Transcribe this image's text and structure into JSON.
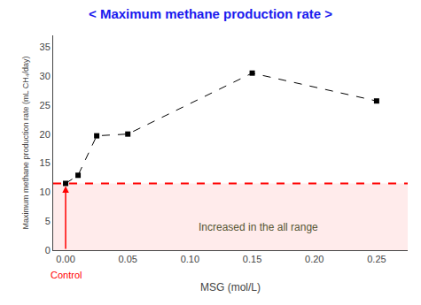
{
  "chart_data": {
    "type": "line",
    "title": "< Maximum methane production rate >",
    "title_color": "#1a1aee",
    "xlabel": "MSG (mol/L)",
    "ylabel": "Maximum methane production rate (mL CH₄/day)",
    "x": [
      0.0,
      0.01,
      0.025,
      0.05,
      0.15,
      0.25
    ],
    "series": [
      {
        "color": "#000000",
        "marker": "square",
        "line_style": "dashed",
        "values": [
          11.5,
          12.9,
          19.7,
          20.0,
          30.5,
          25.7
        ]
      }
    ],
    "xlim": [
      -0.01,
      0.275
    ],
    "ylim": [
      0,
      37
    ],
    "xticks": [
      {
        "value": 0.0,
        "label": "0.00"
      },
      {
        "value": 0.05,
        "label": "0.05"
      },
      {
        "value": 0.1,
        "label": "0.10"
      },
      {
        "value": 0.15,
        "label": "0.15"
      },
      {
        "value": 0.2,
        "label": "0.20"
      },
      {
        "value": 0.25,
        "label": "0.25"
      }
    ],
    "yticks": [
      0,
      5,
      10,
      15,
      20,
      25,
      30,
      35
    ],
    "grid": false,
    "reference_line": {
      "y": 11.5,
      "color": "#ff0000",
      "line_style": "dashed",
      "fill_color": "#ffcccc"
    },
    "annotations": [
      {
        "text": "Increased in the all range",
        "x": 0.155,
        "y": 4.0,
        "color": "#555533"
      },
      {
        "text": "Control",
        "x": 0.0,
        "color": "#ff0000",
        "arrow": true
      }
    ]
  }
}
